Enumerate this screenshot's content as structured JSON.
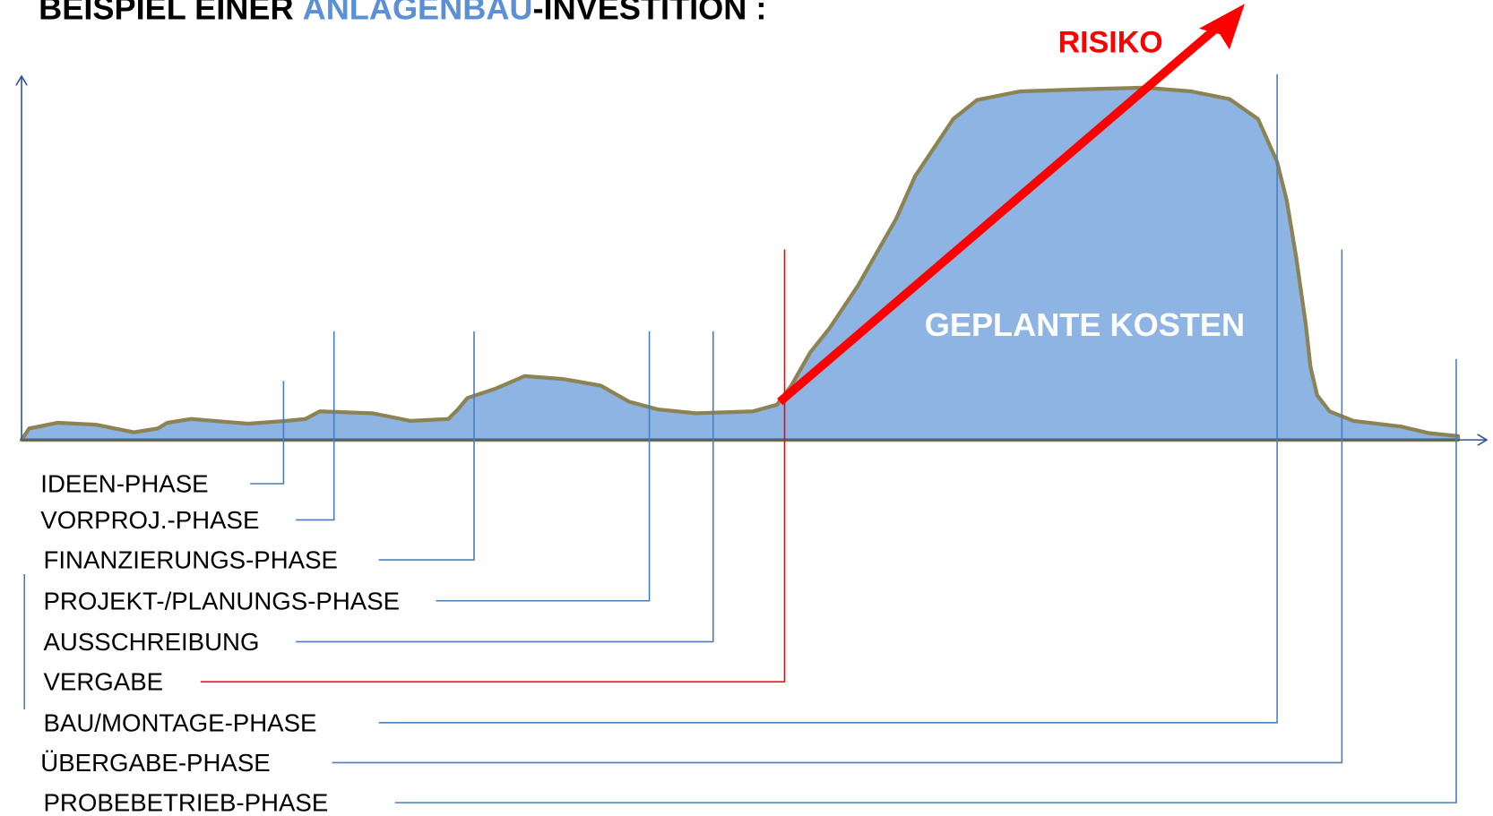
{
  "title": {
    "prefix": "BEISPIEL EINER",
    "highlight": "ANLAGENBAU",
    "suffix": "-INVESTITION :"
  },
  "risk_label": "RISIKO",
  "area_label": "GEPLANTE KOSTEN",
  "phases": [
    "IDEEN-PHASE",
    "VORPROJ.-PHASE",
    "FINANZIERUNGS-PHASE",
    "PROJEKT-/PLANUNGS-PHASE",
    "AUSSCHREIBUNG",
    "VERGABE",
    "BAU/MONTAGE-PHASE",
    "ÜBERGABE-PHASE",
    "PROBEBETRIEB-PHASE"
  ]
}
